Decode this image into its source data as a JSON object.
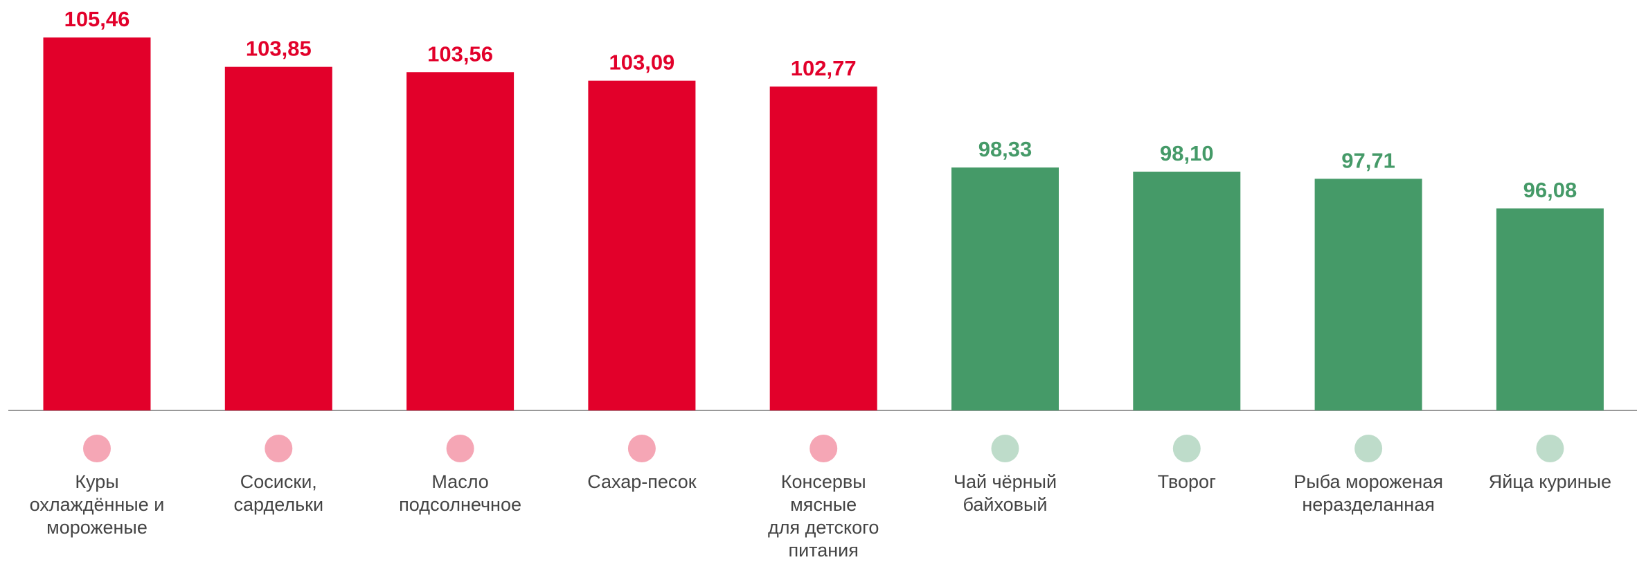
{
  "chart_data": {
    "type": "bar",
    "categories": [
      "Куры\nохлаждённые и\nмороженые",
      "Сосиски,\nсардельки",
      "Масло\nподсолнечное",
      "Сахар-песок",
      "Консервы\nмясные\nдля детского\nпитания",
      "Чай чёрный\nбайховый",
      "Творог",
      "Рыба мороженая\nнеразделанная",
      "Яйца куриные"
    ],
    "values": [
      105.46,
      103.85,
      103.56,
      103.09,
      102.77,
      98.33,
      98.1,
      97.71,
      96.08
    ],
    "value_labels": [
      "105,46",
      "103,85",
      "103,56",
      "103,09",
      "102,77",
      "98,33",
      "98,10",
      "97,71",
      "96,08"
    ],
    "colors": [
      "#e2002a",
      "#e2002a",
      "#e2002a",
      "#e2002a",
      "#e2002a",
      "#459a68",
      "#459a68",
      "#459a68",
      "#459a68"
    ],
    "ylim": [
      85,
      106
    ]
  }
}
